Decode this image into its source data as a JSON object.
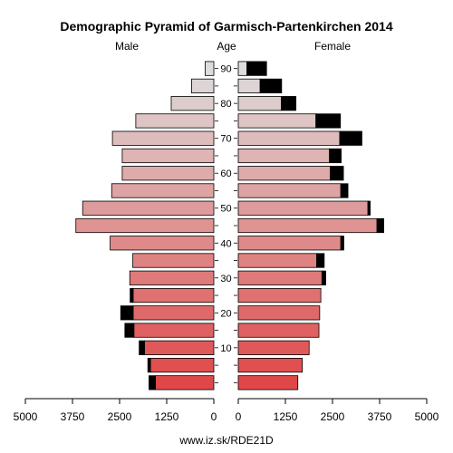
{
  "chart_data": {
    "type": "bar",
    "title": "Demographic Pyramid of Garmisch-Partenkirchen 2014",
    "left_label": "Male",
    "center_label": "Age",
    "right_label": "Female",
    "footer": "www.iz.sk/RDE21D",
    "xlim": [
      0,
      5000
    ],
    "x_ticks": [
      "5000",
      "3750",
      "2500",
      "1250",
      "0",
      "0",
      "1250",
      "2500",
      "3750",
      "5000"
    ],
    "age_ticks": [
      "90",
      "80",
      "70",
      "60",
      "50",
      "40",
      "30",
      "20",
      "10"
    ],
    "age_groups": [
      "0-4",
      "5-9",
      "10-14",
      "15-19",
      "20-24",
      "25-29",
      "30-34",
      "35-39",
      "40-44",
      "45-49",
      "50-54",
      "55-59",
      "60-64",
      "65-69",
      "70-74",
      "75-79",
      "80-84",
      "85-89",
      "90+"
    ],
    "series": [
      {
        "name": "Male",
        "values": [
          1550,
          1680,
          1840,
          2120,
          2140,
          2140,
          2230,
          2150,
          2750,
          3660,
          3480,
          2710,
          2430,
          2430,
          2690,
          2070,
          1130,
          590,
          230
        ],
        "surplus": [
          170,
          70,
          140,
          240,
          330,
          80,
          0,
          0,
          0,
          0,
          0,
          0,
          0,
          0,
          0,
          0,
          0,
          0,
          0
        ]
      },
      {
        "name": "Female",
        "values": [
          1580,
          1700,
          1880,
          2140,
          2160,
          2190,
          2220,
          2080,
          2720,
          3680,
          3440,
          2720,
          2440,
          2420,
          2690,
          2060,
          1140,
          580,
          230
        ],
        "surplus": [
          0,
          0,
          0,
          0,
          0,
          0,
          100,
          200,
          80,
          180,
          60,
          190,
          350,
          310,
          590,
          650,
          390,
          570,
          520
        ]
      }
    ],
    "colors": {
      "young": "#e04848",
      "old": "#dddddd",
      "surplus": "#000000",
      "axis": "#000000"
    }
  }
}
